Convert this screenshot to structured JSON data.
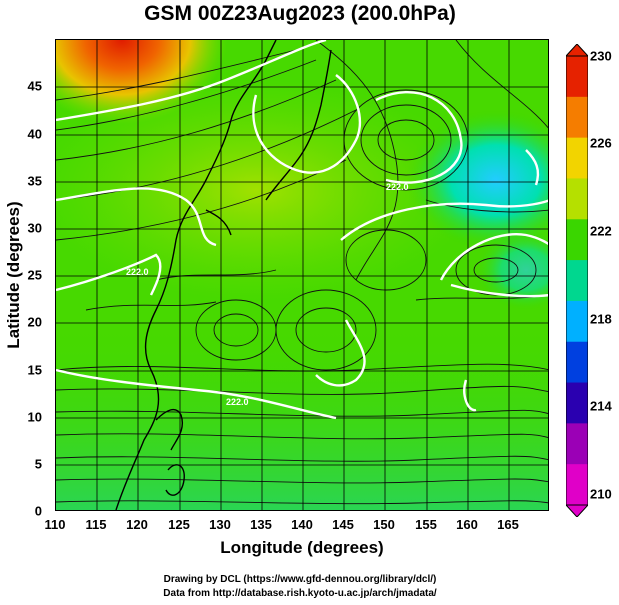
{
  "title": "GSM 00Z23Aug2023 (200.0hPa)",
  "map": {
    "x_axis": {
      "label": "Longitude (degrees)",
      "range": [
        110,
        170
      ],
      "ticks": [
        "110",
        "115",
        "120",
        "125",
        "130",
        "135",
        "140",
        "145",
        "150",
        "155",
        "160",
        "165"
      ]
    },
    "y_axis": {
      "label": "Latitude  (degrees)",
      "range": [
        0,
        50
      ],
      "ticks": [
        "0",
        "5",
        "10",
        "15",
        "20",
        "25",
        "30",
        "35",
        "40",
        "45"
      ]
    },
    "grid": true,
    "fields": [
      "temperature shading",
      "white contours",
      "streamlines",
      "coastlines"
    ]
  },
  "colorbar": {
    "ticks": [
      "230",
      "226",
      "222",
      "218",
      "214",
      "210"
    ],
    "colors": [
      "#e62200",
      "#f57d00",
      "#f2d400",
      "#b5e000",
      "#3ad600",
      "#00d78f",
      "#00b0ff",
      "#0040e0",
      "#2a00b0",
      "#9b00b6",
      "#e000c8"
    ]
  },
  "contour_labels": [
    "222.0",
    "222.0",
    "222.0"
  ],
  "credits": {
    "line1": "Drawing by DCL (https://www.gfd-dennou.org/library/dcl/)",
    "line2": "Data from http://database.rish.kyoto-u.ac.jp/arch/jmadata/"
  }
}
